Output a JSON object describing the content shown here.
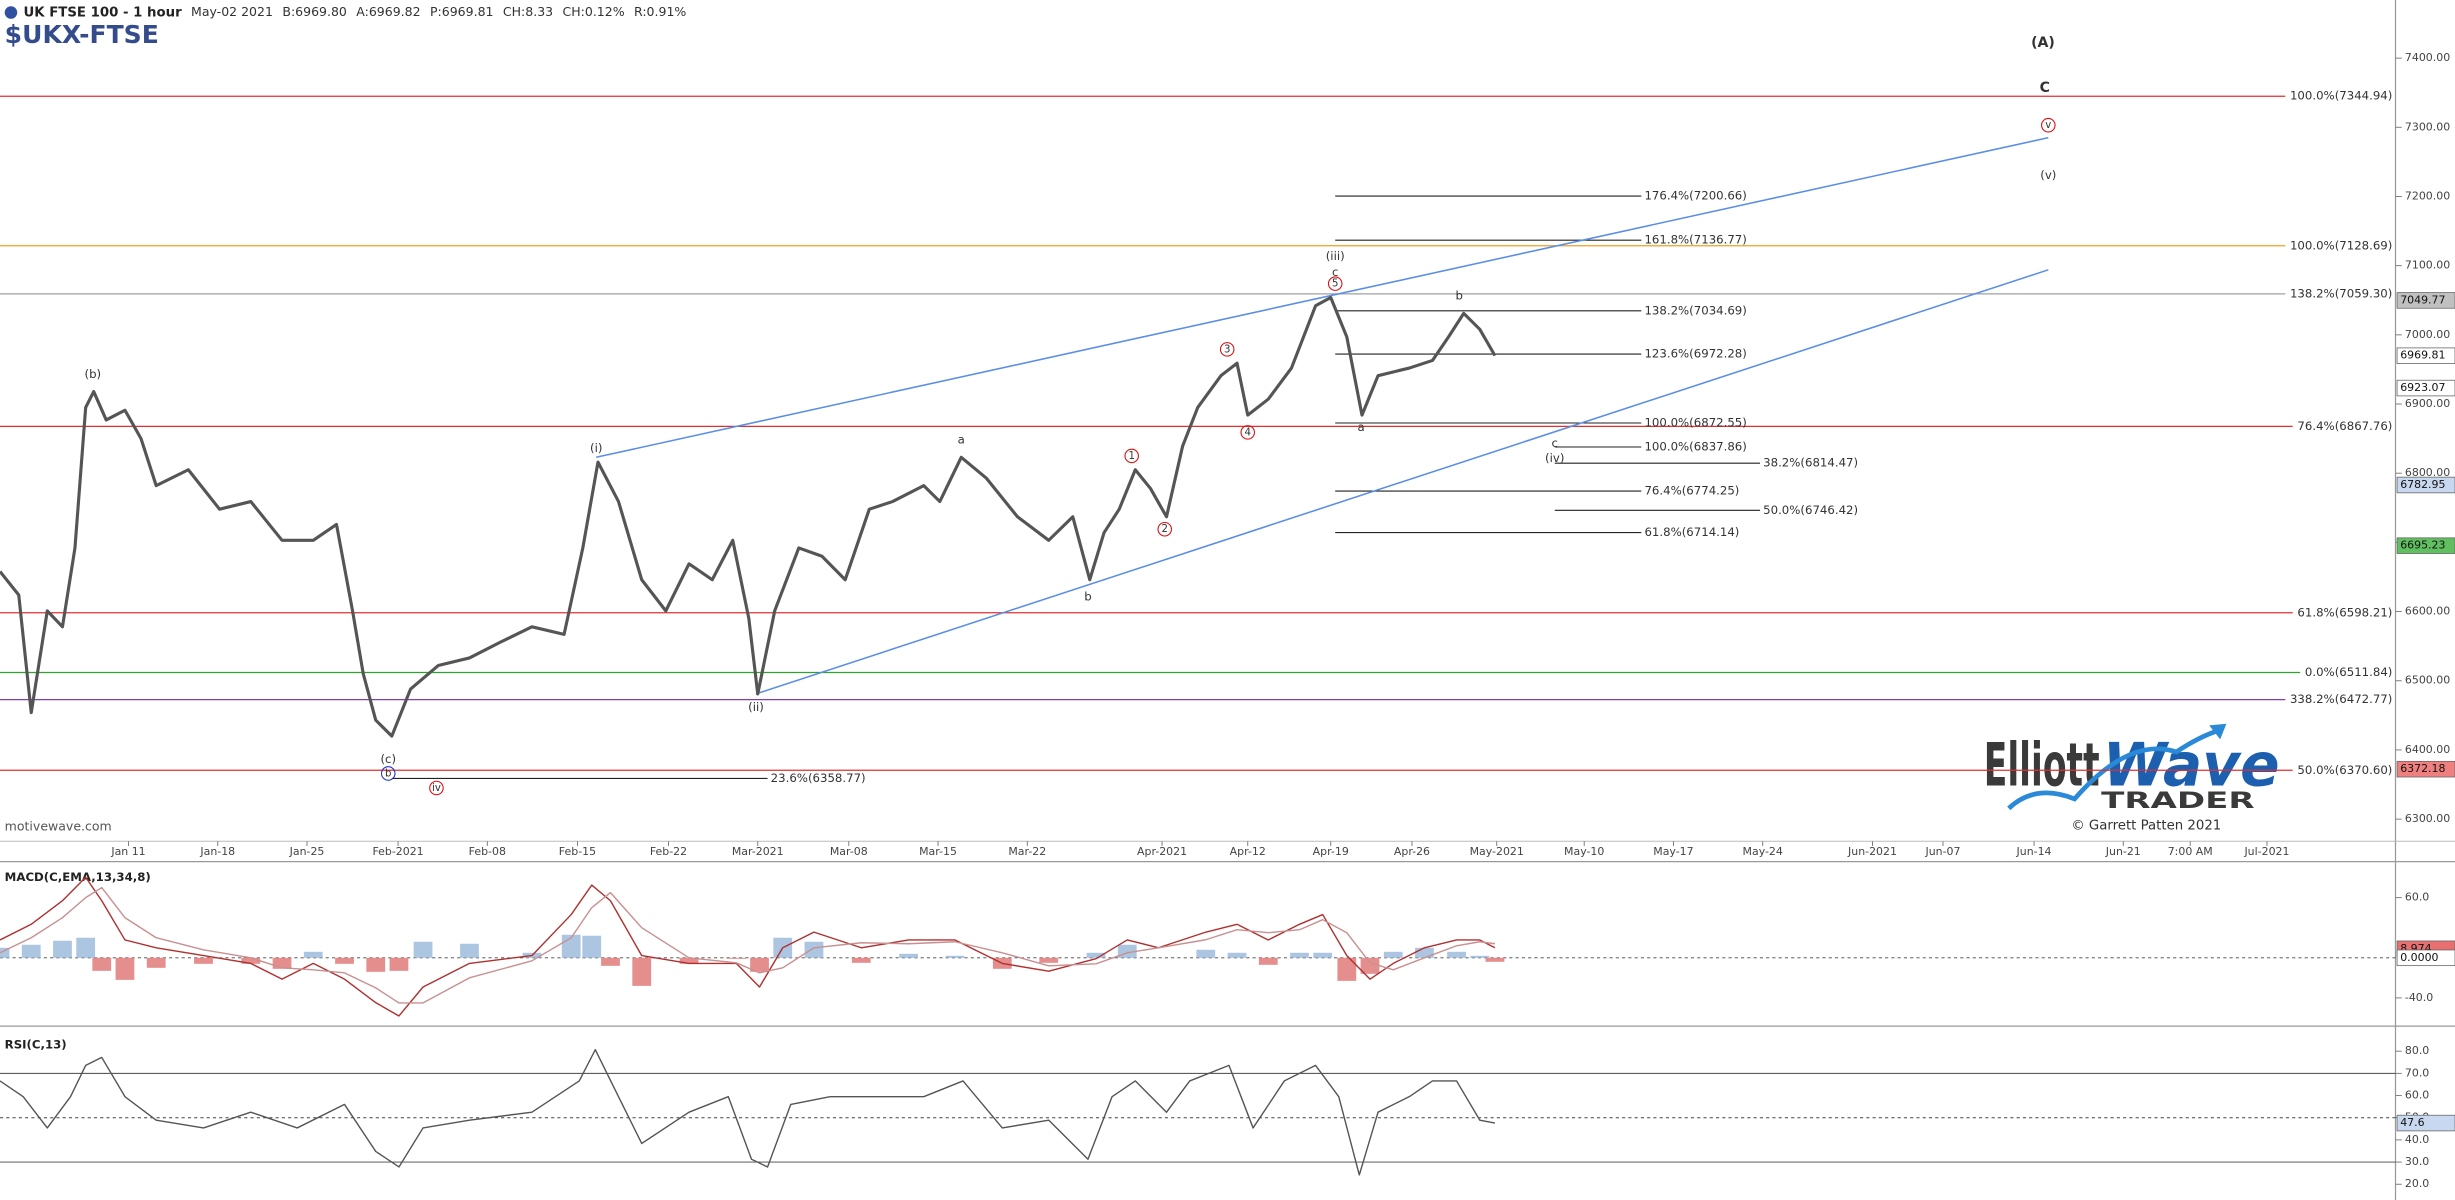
{
  "chart_data": [
    {
      "type": "line",
      "title": "UK FTSE 100 - 1 hour",
      "subtitle": "$UKX-FTSE",
      "quote": [
        {
          "text": "May-02 2021",
          "color": "#888888"
        },
        {
          "text": "B:6969.80",
          "color": "#888888"
        },
        {
          "text": "A:6969.82",
          "color": "#888888"
        },
        {
          "text": "P:6969.81",
          "color": "#888888"
        },
        {
          "text": "CH:8.33",
          "color": "#2a9a2a"
        },
        {
          "text": "CH:0.12%",
          "color": "#2a9a2a"
        },
        {
          "text": "R:0.91%",
          "color": "#e08a00"
        }
      ],
      "x": [
        0,
        0.21,
        0.35,
        0.53,
        0.7,
        0.84,
        0.96,
        1.05,
        1.19,
        1.4,
        1.58,
        1.75,
        2.11,
        2.46,
        2.81,
        3.16,
        3.51,
        3.77,
        3.95,
        4.07,
        4.21,
        4.39,
        4.6,
        4.91,
        5.26,
        5.61,
        5.96,
        6.32,
        6.53,
        6.7,
        6.93,
        7.19,
        7.46,
        7.72,
        7.98,
        8.21,
        8.39,
        8.49,
        8.68,
        8.95,
        9.21,
        9.47,
        9.74,
        10,
        10.35,
        10.53,
        10.77,
        11.05,
        11.4,
        11.75,
        12.02,
        12.21,
        12.37,
        12.54,
        12.72,
        12.89,
        13.07,
        13.25,
        13.42,
        13.68,
        13.86,
        13.98,
        14.21,
        14.47,
        14.74,
        14.91,
        15.09,
        15.26,
        15.44,
        15.79,
        16.05,
        16.23,
        16.4,
        16.58,
        16.75
      ],
      "series": [
        {
          "color": "#555555",
          "values": [
            6658,
            6624,
            6454,
            6601,
            6578,
            6692,
            6895,
            6918,
            6877,
            6891,
            6850,
            6782,
            6805,
            6748,
            6759,
            6703,
            6703,
            6726,
            6601,
            6510,
            6443,
            6420,
            6488,
            6522,
            6533,
            6556,
            6578,
            6567,
            6692,
            6816,
            6759,
            6646,
            6601,
            6669,
            6646,
            6703,
            6590,
            6481,
            6601,
            6692,
            6680,
            6646,
            6748,
            6759,
            6782,
            6759,
            6823,
            6793,
            6737,
            6703,
            6737,
            6646,
            6714,
            6748,
            6805,
            6778,
            6737,
            6839,
            6895,
            6941,
            6959,
            6884,
            6907,
            6952,
            7042,
            7054,
            6997,
            6884,
            6941,
            6952,
            6963,
            6997,
            7031,
            7008,
            6970
          ]
        }
      ],
      "xlim": [
        0,
        26.84
      ],
      "ylim": [
        6268,
        7484
      ],
      "xticks": [
        {
          "value": 1.44,
          "label": "Jan 11"
        },
        {
          "value": 2.44,
          "label": "Jan-18"
        },
        {
          "value": 3.44,
          "label": "Jan-25"
        },
        {
          "value": 4.46,
          "label": "Feb-2021"
        },
        {
          "value": 5.46,
          "label": "Feb-08"
        },
        {
          "value": 6.47,
          "label": "Feb-15"
        },
        {
          "value": 7.49,
          "label": "Feb-22"
        },
        {
          "value": 8.49,
          "label": "Mar-2021"
        },
        {
          "value": 9.51,
          "label": "Mar-08"
        },
        {
          "value": 10.51,
          "label": "Mar-15"
        },
        {
          "value": 11.51,
          "label": "Mar-22"
        },
        {
          "value": 13.02,
          "label": "Apr-2021"
        },
        {
          "value": 13.98,
          "label": "Apr-12"
        },
        {
          "value": 14.91,
          "label": "Apr-19"
        },
        {
          "value": 15.82,
          "label": "Apr-26"
        },
        {
          "value": 16.77,
          "label": "May-2021"
        },
        {
          "value": 17.75,
          "label": "May-10"
        },
        {
          "value": 18.75,
          "label": "May-17"
        },
        {
          "value": 19.75,
          "label": "May-24"
        },
        {
          "value": 20.98,
          "label": "Jun-2021"
        },
        {
          "value": 21.77,
          "label": "Jun-07"
        },
        {
          "value": 22.79,
          "label": "Jun-14"
        },
        {
          "value": 23.79,
          "label": "Jun-21"
        },
        {
          "value": 24.54,
          "label": "7:00 AM"
        },
        {
          "value": 25.4,
          "label": "Jul-2021"
        }
      ],
      "yticks": [
        {
          "value": 6300,
          "label": "6300.00"
        },
        {
          "value": 6400,
          "label": "6400.00"
        },
        {
          "value": 6500,
          "label": "6500.00"
        },
        {
          "value": 6600,
          "label": "6600.00"
        },
        {
          "value": 6700,
          "label": "6700.00"
        },
        {
          "value": 6800,
          "label": "6800.00"
        },
        {
          "value": 6900,
          "label": "6900.00"
        },
        {
          "value": 7000,
          "label": "7000.00"
        },
        {
          "value": 7100,
          "label": "7100.00"
        },
        {
          "value": 7200,
          "label": "7200.00"
        },
        {
          "value": 7300,
          "label": "7300.00"
        },
        {
          "value": 7400,
          "label": "7400.00"
        }
      ],
      "levels": [
        {
          "label": "100.0%(7344.94)",
          "value": 7344.94,
          "color": "#e03030"
        },
        {
          "label": "100.0%(7128.69)",
          "value": 7128.69,
          "color": "#f0a020"
        },
        {
          "label": "138.2%(7059.30)",
          "value": 7059.3,
          "color": "#a0a0a0"
        },
        {
          "label": "76.4%(6867.76)",
          "value": 6867.76,
          "color": "#e03030"
        },
        {
          "label": "61.8%(6598.21)",
          "value": 6598.21,
          "color": "#e03030"
        },
        {
          "label": "0.0%(6511.84)",
          "value": 6511.84,
          "color": "#30a030"
        },
        {
          "label": "338.2%(6472.77)",
          "value": 6472.77,
          "color": "#8040b0"
        },
        {
          "label": "50.0%(6370.60)",
          "value": 6370.6,
          "color": "#e03030"
        }
      ],
      "extensions": [
        {
          "label": "176.4%(7200.66)",
          "value": 7200.66,
          "x": [
            14.96,
            18.39
          ]
        },
        {
          "label": "161.8%(7136.77)",
          "value": 7136.77,
          "x": [
            14.96,
            18.39
          ]
        },
        {
          "label": "138.2%(7034.69)",
          "value": 7034.69,
          "x": [
            14.96,
            18.39
          ]
        },
        {
          "label": "123.6%(6972.28)",
          "value": 6972.28,
          "x": [
            14.96,
            18.39
          ]
        },
        {
          "label": "100.0%(6872.55)",
          "value": 6872.55,
          "x": [
            14.96,
            18.39
          ]
        },
        {
          "label": "100.0%(6837.86)",
          "value": 6837.86,
          "x": [
            17.42,
            18.39
          ]
        },
        {
          "label": "38.2%(6814.47)",
          "value": 6814.47,
          "x": [
            17.42,
            19.72
          ]
        },
        {
          "label": "76.4%(6774.25)",
          "value": 6774.25,
          "x": [
            14.96,
            18.39
          ]
        },
        {
          "label": "50.0%(6746.42)",
          "value": 6746.42,
          "x": [
            17.42,
            19.72
          ]
        },
        {
          "label": "61.8%(6714.14)",
          "value": 6714.14,
          "x": [
            14.96,
            18.39
          ]
        },
        {
          "label": "23.6%(6358.77)",
          "value": 6358.77,
          "x": [
            4.39,
            8.6
          ]
        }
      ],
      "trendlines": [
        {
          "color": "#5b8ee6",
          "x": [
            6.68,
            22.95
          ],
          "y": [
            6823,
            7285
          ]
        },
        {
          "color": "#5b8ee6",
          "x": [
            8.47,
            22.95
          ],
          "y": [
            6481,
            7094
          ]
        }
      ],
      "waves": [
        {
          "text": "(A)",
          "x": 22.89,
          "y": 7422,
          "color": "#dd1111"
        },
        {
          "text": "C",
          "x": 22.91,
          "y": 7357,
          "color": "#dd1111"
        },
        {
          "text": "v",
          "x": 22.95,
          "y": 7303,
          "color": "#dd1111",
          "circled": true
        },
        {
          "text": "(v)",
          "x": 22.95,
          "y": 7230,
          "color": "#dd1111"
        },
        {
          "text": "(iii)",
          "x": 14.96,
          "y": 7113,
          "color": "#dd1111"
        },
        {
          "text": "c",
          "x": 14.96,
          "y": 7090,
          "color": "#dd1111"
        },
        {
          "text": "5",
          "x": 14.96,
          "y": 7074,
          "color": "#dd1111",
          "circled": true
        },
        {
          "text": "b",
          "x": 16.35,
          "y": 7056,
          "color": "#dd1111"
        },
        {
          "text": "3",
          "x": 13.75,
          "y": 6979,
          "color": "#dd1111",
          "circled": true
        },
        {
          "text": "4",
          "x": 13.98,
          "y": 6859,
          "color": "#dd1111",
          "circled": true
        },
        {
          "text": "a",
          "x": 15.25,
          "y": 6866,
          "color": "#dd1111"
        },
        {
          "text": "1",
          "x": 12.68,
          "y": 6825,
          "color": "#dd1111",
          "circled": true
        },
        {
          "text": "2",
          "x": 13.05,
          "y": 6719,
          "color": "#dd1111",
          "circled": true
        },
        {
          "text": "(i)",
          "x": 6.68,
          "y": 6836,
          "color": "#dd1111"
        },
        {
          "text": "a",
          "x": 10.77,
          "y": 6848,
          "color": "#dd1111"
        },
        {
          "text": "b",
          "x": 12.19,
          "y": 6621,
          "color": "#dd1111"
        },
        {
          "text": "(ii)",
          "x": 8.47,
          "y": 6461,
          "color": "#dd1111"
        },
        {
          "text": "c",
          "x": 17.42,
          "y": 6843,
          "color": "#dd1111"
        },
        {
          "text": "(iv)",
          "x": 17.42,
          "y": 6821,
          "color": "#dd1111"
        },
        {
          "text": "(b)",
          "x": 1.04,
          "y": 6943,
          "color": "#2233cc"
        },
        {
          "text": "(c)",
          "x": 4.35,
          "y": 6386,
          "color": "#2233cc"
        },
        {
          "text": "b",
          "x": 4.35,
          "y": 6366,
          "color": "#2233cc",
          "circled": true
        },
        {
          "text": "iv",
          "x": 4.89,
          "y": 6345,
          "color": "#dd1111",
          "circled": true
        }
      ],
      "price_tags": [
        {
          "value": 7049.77,
          "color": "#c0c0c0"
        },
        {
          "value": 6969.81,
          "color": "#ffffff"
        },
        {
          "value": 6923.07,
          "color": "#ffffff"
        },
        {
          "value": 6782.95,
          "color": "#c8d8f0"
        },
        {
          "value": 6695.23,
          "color": "#60c060"
        },
        {
          "value": 6372.18,
          "color": "#f08080"
        }
      ]
    },
    {
      "type": "line",
      "title": "MACD(C,EMA,13,34,8)",
      "x": [
        0,
        0.35,
        0.7,
        0.96,
        1.14,
        1.4,
        1.75,
        2.28,
        2.81,
        3.16,
        3.51,
        3.86,
        4.21,
        4.47,
        4.74,
        5.26,
        5.96,
        6.4,
        6.63,
        6.84,
        7.19,
        7.72,
        8.25,
        8.51,
        8.77,
        9.12,
        9.65,
        10.18,
        10.7,
        11.23,
        11.75,
        12.28,
        12.63,
        12.98,
        13.51,
        13.86,
        14.21,
        14.56,
        14.82,
        15.09,
        15.35,
        15.61,
        15.96,
        16.32,
        16.58,
        16.75
      ],
      "series": [
        {
          "color": "#b03030",
          "values": [
            17.8,
            33.4,
            56.9,
            80.3,
            56.9,
            17.8,
            10,
            2.2,
            -5.6,
            -21.3,
            -5.6,
            -21.3,
            -44.7,
            -58,
            -29.1,
            -5.6,
            2.2,
            43.1,
            72.5,
            56.9,
            2.2,
            -5.6,
            -5.6,
            -29.1,
            10,
            25.6,
            10,
            17.8,
            17.8,
            -5.6,
            -13.4,
            -0.9,
            17.8,
            10,
            25.6,
            33.4,
            17.8,
            33.4,
            43.1,
            2.2,
            -21.3,
            -5.6,
            10,
            17.8,
            17.8,
            10
          ]
        },
        {
          "color": "#c89090",
          "values": [
            5,
            20,
            40,
            60,
            70,
            40,
            20,
            8,
            0,
            -10,
            -12,
            -15,
            -30,
            -45,
            -45,
            -20,
            -3,
            20,
            50,
            65,
            30,
            0,
            -5,
            -15,
            -10,
            10,
            15,
            14,
            16,
            5,
            -8,
            -6,
            5,
            10,
            18,
            28,
            25,
            28,
            38,
            25,
            -5,
            -12,
            0,
            12,
            16,
            14
          ]
        }
      ],
      "histogram": {
        "positive_color": "#9dbcdd",
        "negative_color": "#e07a7a",
        "values": [
          10,
          13,
          17,
          20,
          -13,
          -22,
          -10,
          -6,
          -6,
          -11,
          6,
          -6,
          -14,
          -13,
          16,
          14,
          5,
          23,
          22,
          -8,
          -28,
          -6,
          -1,
          -14,
          20,
          16,
          -5,
          4,
          2,
          -11,
          -5,
          5,
          13,
          0,
          8,
          5,
          -7,
          5,
          5,
          -23,
          -16,
          6,
          10,
          6,
          2,
          -4
        ]
      },
      "ylim": [
        -60.3,
        95.9
      ],
      "yticks": [
        {
          "value": 60,
          "label": "60.0"
        },
        {
          "value": -40,
          "label": "-40.0"
        }
      ],
      "reference_lines": [
        {
          "value": 0,
          "dashed": true
        }
      ],
      "price_tags": [
        {
          "value": 8.974,
          "color": "#e87070"
        },
        {
          "value": 0,
          "label": "0.0000",
          "color": "#ffffff"
        }
      ]
    },
    {
      "type": "line",
      "title": "RSI(C,13)",
      "x": [
        0,
        0.26,
        0.53,
        0.79,
        0.96,
        1.14,
        1.4,
        1.75,
        2.28,
        2.81,
        3.33,
        3.86,
        4.21,
        4.47,
        4.74,
        5.26,
        5.96,
        6.49,
        6.67,
        6.93,
        7.19,
        7.72,
        8.16,
        8.42,
        8.6,
        8.86,
        9.3,
        9.82,
        10.35,
        10.79,
        11.23,
        11.75,
        12.19,
        12.46,
        12.72,
        13.07,
        13.33,
        13.77,
        14.04,
        14.39,
        14.74,
        15,
        15.23,
        15.44,
        15.79,
        16.05,
        16.32,
        16.58,
        16.75
      ],
      "series": [
        {
          "color": "#555555",
          "values": [
            66.6,
            59.5,
            45.4,
            59.5,
            73.6,
            77.2,
            59.5,
            48.9,
            45.4,
            52.5,
            45.4,
            56,
            34.8,
            27.8,
            45.4,
            48.9,
            52.5,
            66.6,
            80.7,
            59.5,
            38.4,
            52.5,
            59.5,
            31.3,
            27.8,
            56,
            59.5,
            59.5,
            59.5,
            66.6,
            45.4,
            48.9,
            31.3,
            59.5,
            66.6,
            52.5,
            66.6,
            73.6,
            45.4,
            66.6,
            73.6,
            59.5,
            24.2,
            52.5,
            59.5,
            66.6,
            66.6,
            48.9,
            47.6
          ]
        }
      ],
      "ylim": [
        12.9,
        89.2
      ],
      "yticks": [
        {
          "value": 80,
          "label": "80.0"
        },
        {
          "value": 70,
          "label": "70.0"
        },
        {
          "value": 60,
          "label": "60.0"
        },
        {
          "value": 50,
          "label": "50.0"
        },
        {
          "value": 40,
          "label": "40.0"
        },
        {
          "value": 30,
          "label": "30.0"
        },
        {
          "value": 20,
          "label": "20.0"
        }
      ],
      "reference_lines": [
        {
          "value": 70
        },
        {
          "value": 50,
          "dashed": true
        },
        {
          "value": 30
        }
      ],
      "price_tags": [
        {
          "value": 47.6,
          "color": "#c8d8f0"
        }
      ]
    }
  ],
  "branding": {
    "watermark": "motivewave.com",
    "logo_elliott": "Elliott",
    "logo_wave": "Wave",
    "logo_trader": "TRADER",
    "copyright": "© Garrett Patten 2021"
  }
}
